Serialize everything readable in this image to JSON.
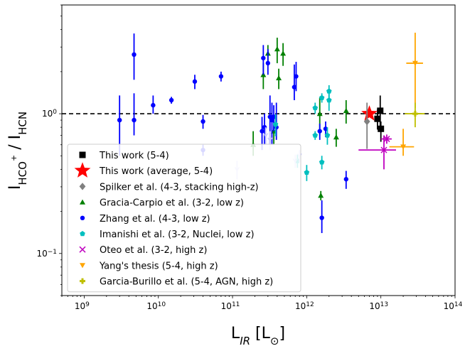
{
  "chart_data": {
    "type": "scatter",
    "title": "",
    "xlabel": "L_IR [L_⊙]",
    "ylabel": "I_HCO+ / I_HCN",
    "xscale": "log",
    "yscale": "log",
    "xlim": [
      500000000.0,
      100000000000000.0
    ],
    "ylim": [
      0.05,
      6
    ],
    "grid": false,
    "x_ticks": [
      {
        "exp": "9"
      },
      {
        "exp": "10"
      },
      {
        "exp": "11"
      },
      {
        "exp": "12"
      },
      {
        "exp": "13"
      },
      {
        "exp": "14"
      }
    ],
    "y_ticks": [
      {
        "base": "10",
        "exp": "−1",
        "value": 0.1
      },
      {
        "base": "10",
        "exp": "0",
        "value": 1
      }
    ],
    "reference_line": {
      "y": 1,
      "style": "dashed",
      "color": "#000000"
    },
    "legend": {
      "placement": "lower-left"
    },
    "series": [
      {
        "name": "This work (5-4)",
        "marker": "square",
        "color": "#000000",
        "points": [
          {
            "x": 9800000000000.0,
            "y": 1.05,
            "yerr": [
              0.25,
              0.3
            ]
          },
          {
            "x": 10000000000000.0,
            "y": 0.78,
            "yerr": [
              0.15,
              0.1
            ]
          },
          {
            "x": 9000000000000.0,
            "y": 0.92,
            "yerr": [
              0.15,
              0.15
            ]
          }
        ]
      },
      {
        "name": "This work (average, 5-4)",
        "marker": "star",
        "color": "#ff0000",
        "points": [
          {
            "x": 7000000000000.0,
            "y": 1.0
          }
        ]
      },
      {
        "name": "Spilker et al. (4-3, stacking high-z)",
        "marker": "diamond",
        "color": "#808080",
        "points": [
          {
            "x": 6500000000000.0,
            "y": 0.88,
            "yerr": [
              0.32,
              0.32
            ]
          }
        ]
      },
      {
        "name": "Gracia-Carpio et al. (3-2, low z)",
        "marker": "triangle-up",
        "color": "#008000",
        "points": [
          {
            "x": 190000000000.0,
            "y": 0.6,
            "yerr": [
              0.1,
              0.15
            ]
          },
          {
            "x": 260000000000.0,
            "y": 1.9,
            "yerr": [
              0.4,
              0.4
            ]
          },
          {
            "x": 300000000000.0,
            "y": 2.7,
            "yerr": [
              0.4,
              0.4
            ]
          },
          {
            "x": 360000000000.0,
            "y": 0.75,
            "yerr": [
              0.15,
              0.2
            ]
          },
          {
            "x": 400000000000.0,
            "y": 2.9,
            "yerr": [
              0.6,
              0.6
            ]
          },
          {
            "x": 480000000000.0,
            "y": 2.7,
            "yerr": [
              0.5,
              0.5
            ]
          },
          {
            "x": 420000000000.0,
            "y": 1.8,
            "yerr": [
              0.3,
              0.3
            ]
          },
          {
            "x": 1500000000000.0,
            "y": 1.0,
            "yerr": [
              0.3,
              0.3
            ]
          },
          {
            "x": 1550000000000.0,
            "y": 0.26,
            "yerr": [
              0.02,
              0.02
            ]
          },
          {
            "x": 2500000000000.0,
            "y": 0.68,
            "yerr": [
              0.1,
              0.1
            ]
          },
          {
            "x": 3400000000000.0,
            "y": 1.05,
            "yerr": [
              0.2,
              0.2
            ]
          }
        ]
      },
      {
        "name": "Zhang et al. (4-3, low z)",
        "marker": "circle",
        "color": "#0000ff",
        "points": [
          {
            "x": 3000000000.0,
            "y": 0.9,
            "yerr": [
              0.4,
              0.45
            ]
          },
          {
            "x": 4700000000.0,
            "y": 2.65,
            "yerr": [
              0.9,
              1.1
            ]
          },
          {
            "x": 4700000000.0,
            "y": 0.9,
            "yerr": [
              0.2,
              0.5
            ]
          },
          {
            "x": 8500000000.0,
            "y": 1.15,
            "yerr": [
              0.15,
              0.2
            ]
          },
          {
            "x": 15000000000.0,
            "y": 1.25,
            "yerr": [
              0.07,
              0.07
            ]
          },
          {
            "x": 31000000000.0,
            "y": 1.7,
            "yerr": [
              0.2,
              0.2
            ]
          },
          {
            "x": 40000000000.0,
            "y": 0.88,
            "yerr": [
              0.1,
              0.1
            ]
          },
          {
            "x": 40000000000.0,
            "y": 0.55,
            "yerr": [
              0.05,
              0.05
            ]
          },
          {
            "x": 70000000000.0,
            "y": 1.85,
            "yerr": [
              0.15,
              0.15
            ]
          },
          {
            "x": 250000000000.0,
            "y": 0.75,
            "yerr": [
              0.2,
              0.2
            ]
          },
          {
            "x": 260000000000.0,
            "y": 2.5,
            "yerr": [
              0.6,
              0.6
            ]
          },
          {
            "x": 270000000000.0,
            "y": 0.8,
            "yerr": [
              0.2,
              0.2
            ]
          },
          {
            "x": 300000000000.0,
            "y": 2.3,
            "yerr": [
              0.4,
              0.6
            ]
          },
          {
            "x": 320000000000.0,
            "y": 0.95,
            "yerr": [
              0.35,
              0.4
            ]
          },
          {
            "x": 340000000000.0,
            "y": 0.9,
            "yerr": [
              0.3,
              0.3
            ]
          },
          {
            "x": 360000000000.0,
            "y": 0.95,
            "yerr": [
              0.2,
              0.2
            ]
          },
          {
            "x": 390000000000.0,
            "y": 0.8,
            "yerr": [
              0.15,
              0.4
            ]
          },
          {
            "x": 680000000000.0,
            "y": 1.55,
            "yerr": [
              0.3,
              0.7
            ]
          },
          {
            "x": 720000000000.0,
            "y": 1.85,
            "yerr": [
              0.4,
              0.5
            ]
          },
          {
            "x": 1500000000000.0,
            "y": 0.75,
            "yerr": [
              0.1,
              0.1
            ]
          },
          {
            "x": 1600000000000.0,
            "y": 0.18,
            "yerr": [
              0.04,
              0.06
            ]
          },
          {
            "x": 1800000000000.0,
            "y": 0.78,
            "yerr": [
              0.1,
              0.1
            ]
          },
          {
            "x": 3400000000000.0,
            "y": 0.34,
            "yerr": [
              0.05,
              0.05
            ]
          }
        ]
      },
      {
        "name": "Imanishi et al. (3-2, Nuclei, low z)",
        "marker": "pentagon",
        "color": "#00bfbf",
        "points": [
          {
            "x": 380000000000.0,
            "y": 0.84,
            "yerr": [
              0.15,
              0.15
            ]
          },
          {
            "x": 750000000000.0,
            "y": 0.46,
            "yerr": [
              0.05,
              0.05
            ]
          },
          {
            "x": 1000000000000.0,
            "y": 0.38,
            "yerr": [
              0.05,
              0.05
            ]
          },
          {
            "x": 1300000000000.0,
            "y": 1.1,
            "yerr": [
              0.1,
              0.1
            ]
          },
          {
            "x": 1300000000000.0,
            "y": 0.7,
            "yerr": [
              0.05,
              0.05
            ]
          },
          {
            "x": 1600000000000.0,
            "y": 0.45,
            "yerr": [
              0.05,
              0.05
            ]
          },
          {
            "x": 1600000000000.0,
            "y": 1.3,
            "yerr": [
              0.1,
              0.1
            ]
          },
          {
            "x": 1900000000000.0,
            "y": 0.7,
            "yerr": [
              0.1,
              0.1
            ]
          },
          {
            "x": 2000000000000.0,
            "y": 1.25,
            "yerr": [
              0.2,
              0.25
            ]
          },
          {
            "x": 2000000000000.0,
            "y": 1.45,
            "yerr": [
              0.15,
              0.15
            ]
          }
        ]
      },
      {
        "name": "Oteo et al. (3-2, high z)",
        "marker": "x",
        "color": "#bf00bf",
        "points": [
          {
            "x": 12000000000000.0,
            "y": 0.66,
            "yerr": [
              0.05,
              0.05
            ],
            "xerr": [
              2000000000000.0,
              2000000000000.0
            ]
          },
          {
            "x": 11000000000000.0,
            "y": 0.55,
            "yerr": [
              0.15,
              0.15
            ],
            "xerr": [
              6000000000000.0,
              5000000000000.0
            ]
          }
        ]
      },
      {
        "name": "Yang's thesis (5-4, high z)",
        "marker": "triangle-down",
        "color": "#ffa500",
        "points": [
          {
            "x": 20000000000000.0,
            "y": 0.58,
            "yerr": [
              0.08,
              0.2
            ],
            "xerr": [
              7000000000000.0,
              8000000000000.0
            ]
          },
          {
            "x": 29000000000000.0,
            "y": 2.3,
            "yerr": [
              1.2,
              1.5
            ],
            "xerr": [
              7000000000000.0,
              8000000000000.0
            ]
          }
        ]
      },
      {
        "name": "Garcia-Burillo et al. (5-4, AGN, high z)",
        "marker": "plus",
        "color": "#bfbf00",
        "points": [
          {
            "x": 29000000000000.0,
            "y": 1.0,
            "yerr": [
              0.2,
              0.2
            ],
            "xerr": [
              8000000000000.0,
              10000000000000.0
            ]
          }
        ]
      },
      {
        "name": "",
        "marker": "upper-limit",
        "color": "#c8c8ff",
        "points": [
          {
            "x": 115000000000.0,
            "y": 0.4,
            "yerr": [
              0.06,
              0.06
            ]
          },
          {
            "x": 280000000000.0,
            "y": 0.7,
            "yerr": [
              0.1,
              0.1
            ]
          },
          {
            "x": 320000000000.0,
            "y": 0.65,
            "yerr": [
              0.1,
              0.1
            ]
          },
          {
            "x": 800000000000.0,
            "y": 0.5,
            "yerr": [
              0.05,
              0.05
            ]
          },
          {
            "x": 700000000000.0,
            "y": 0.46,
            "yerr": [
              0.05,
              0.05
            ]
          }
        ]
      }
    ]
  }
}
